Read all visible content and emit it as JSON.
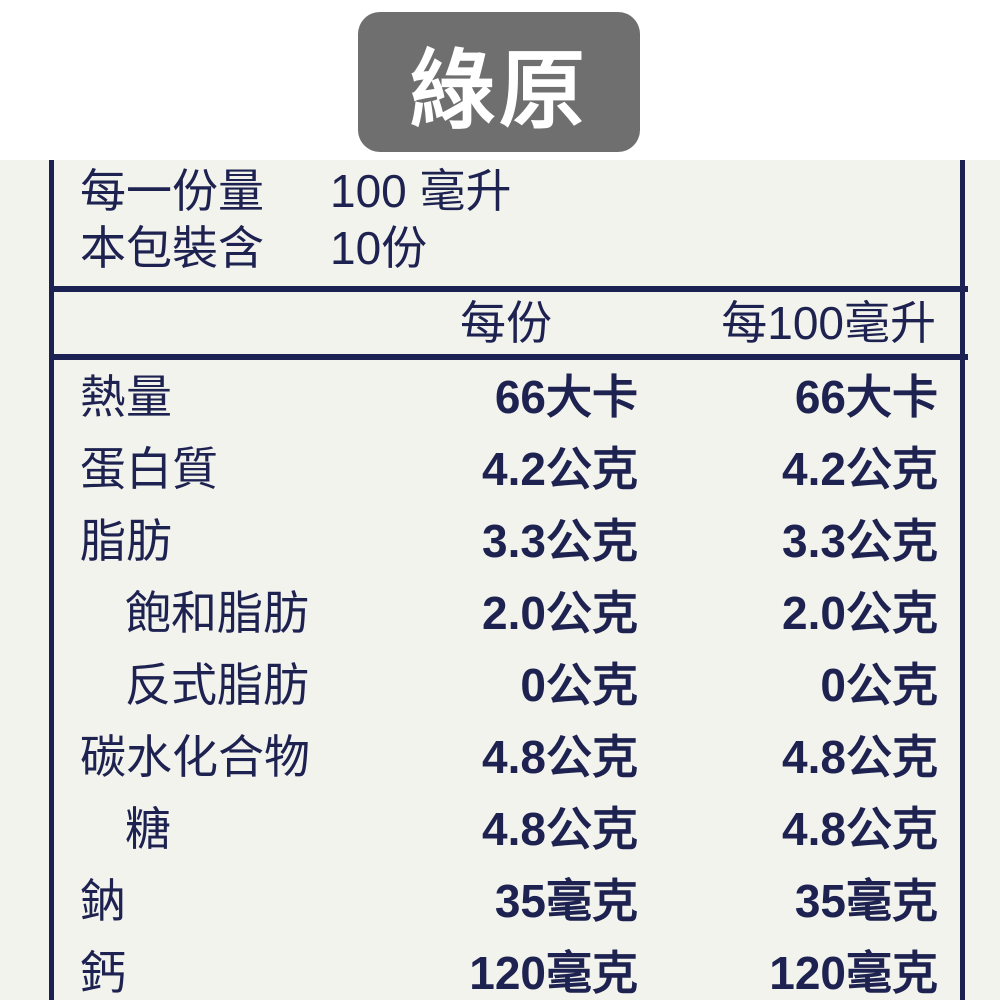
{
  "badge": {
    "title": "綠原",
    "color": "#6f6f6f"
  },
  "header": {
    "serving_size_label": "每一份量",
    "serving_size_value": "100 毫升",
    "servings_label": "本包裝含",
    "servings_value": "10份"
  },
  "columns": {
    "per_serving": "每份",
    "per_100ml": "每100毫升"
  },
  "rows": [
    {
      "name": "熱量",
      "per_serving": "66大卡",
      "per_100ml": "66大卡",
      "indent": false
    },
    {
      "name": "蛋白質",
      "per_serving": "4.2公克",
      "per_100ml": "4.2公克",
      "indent": false
    },
    {
      "name": "脂肪",
      "per_serving": "3.3公克",
      "per_100ml": "3.3公克",
      "indent": false
    },
    {
      "name": "飽和脂肪",
      "per_serving": "2.0公克",
      "per_100ml": "2.0公克",
      "indent": true
    },
    {
      "name": "反式脂肪",
      "per_serving": "0公克",
      "per_100ml": "0公克",
      "indent": true
    },
    {
      "name": "碳水化合物",
      "per_serving": "4.8公克",
      "per_100ml": "4.8公克",
      "indent": false
    },
    {
      "name": "糖",
      "per_serving": "4.8公克",
      "per_100ml": "4.8公克",
      "indent": true
    },
    {
      "name": "鈉",
      "per_serving": "35毫克",
      "per_100ml": "35毫克",
      "indent": false
    },
    {
      "name": "鈣",
      "per_serving": "120毫克",
      "per_100ml": "120毫克",
      "indent": false
    }
  ],
  "colors": {
    "ink": "#1b2152",
    "paper": "#f3f3ed"
  }
}
